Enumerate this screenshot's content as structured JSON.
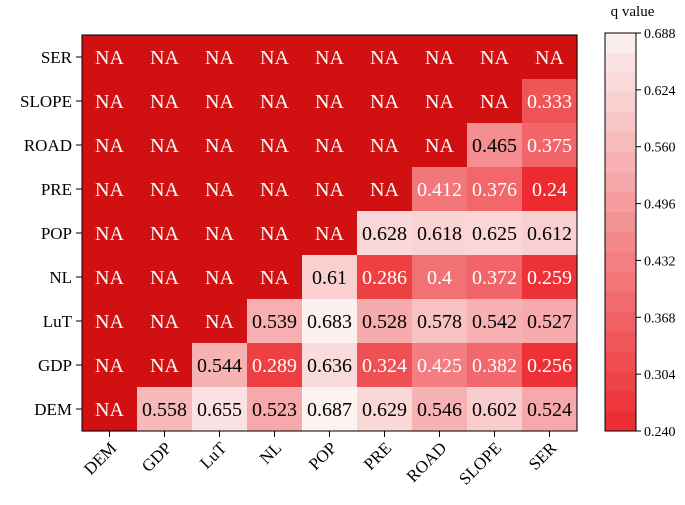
{
  "chart_data": {
    "type": "heatmap",
    "x_categories": [
      "DEM",
      "GDP",
      "LuT",
      "NL",
      "POP",
      "PRE",
      "ROAD",
      "SLOPE",
      "SER"
    ],
    "y_categories": [
      "SER",
      "SLOPE",
      "ROAD",
      "PRE",
      "POP",
      "NL",
      "LuT",
      "GDP",
      "DEM"
    ],
    "na_label": "NA",
    "na_color": "#d11111",
    "rows": [
      [
        "NA",
        "NA",
        "NA",
        "NA",
        "NA",
        "NA",
        "NA",
        "NA",
        "NA"
      ],
      [
        "NA",
        "NA",
        "NA",
        "NA",
        "NA",
        "NA",
        "NA",
        "NA",
        0.333
      ],
      [
        "NA",
        "NA",
        "NA",
        "NA",
        "NA",
        "NA",
        "NA",
        0.465,
        0.375
      ],
      [
        "NA",
        "NA",
        "NA",
        "NA",
        "NA",
        "NA",
        0.412,
        0.376,
        0.24
      ],
      [
        "NA",
        "NA",
        "NA",
        "NA",
        "NA",
        0.628,
        0.618,
        0.625,
        0.612
      ],
      [
        "NA",
        "NA",
        "NA",
        "NA",
        0.61,
        0.286,
        0.4,
        0.372,
        0.259
      ],
      [
        "NA",
        "NA",
        "NA",
        0.539,
        0.683,
        0.528,
        0.578,
        0.542,
        0.527
      ],
      [
        "NA",
        "NA",
        0.544,
        0.289,
        0.636,
        0.324,
        0.425,
        0.382,
        0.256
      ],
      [
        "NA",
        0.558,
        0.655,
        0.523,
        0.687,
        0.629,
        0.546,
        0.602,
        0.524
      ]
    ],
    "colorbar": {
      "title": "q value",
      "min": 0.24,
      "max": 0.688,
      "ticks": [
        "0.688",
        "0.624",
        "0.560",
        "0.496",
        "0.432",
        "0.368",
        "0.304",
        "0.240"
      ],
      "color_low": "#ec2a2f",
      "color_high": "#fcf2f2",
      "steps": 20
    },
    "text_color_dark": "#000000",
    "text_color_light": "#ffffff",
    "light_text_threshold": 0.45
  }
}
